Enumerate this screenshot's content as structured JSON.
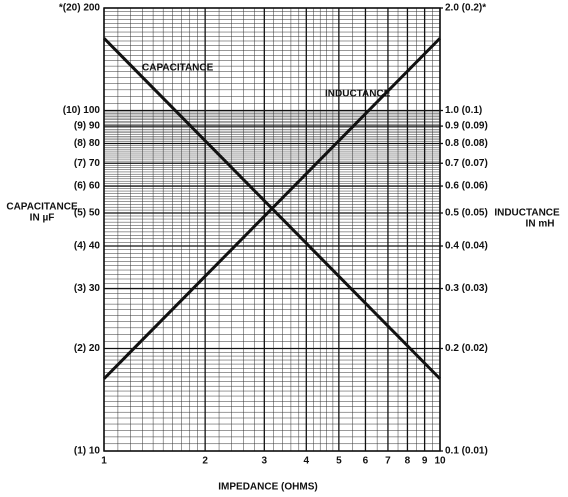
{
  "chart_data": {
    "type": "line",
    "xlabel": "IMPEDANCE (OHMS)",
    "ylabel": [
      "CAPACITANCE",
      "IN µF"
    ],
    "y2label": [
      "INDUCTANCE",
      "IN mH"
    ],
    "xscale": "log",
    "yscale": "log",
    "grid": true,
    "xlim": [
      1,
      10
    ],
    "xticks": [
      1,
      2,
      3,
      4,
      5,
      6,
      7,
      8,
      9,
      10
    ],
    "ylim": [
      10,
      200
    ],
    "yticks": [
      {
        "value": 200,
        "label": "*(20) 200"
      },
      {
        "value": 100,
        "label": "(10) 100"
      },
      {
        "value": 90,
        "label": "(9) 90"
      },
      {
        "value": 80,
        "label": "(8) 80"
      },
      {
        "value": 70,
        "label": "(7) 70"
      },
      {
        "value": 60,
        "label": "(6) 60"
      },
      {
        "value": 50,
        "label": "(5) 50"
      },
      {
        "value": 40,
        "label": "(4) 40"
      },
      {
        "value": 30,
        "label": "(3) 30"
      },
      {
        "value": 20,
        "label": "(2) 20"
      },
      {
        "value": 10,
        "label": "(1) 10"
      }
    ],
    "y2lim": [
      0.1,
      2.0
    ],
    "y2ticks": [
      {
        "value": 2.0,
        "label": "2.0 (0.2)*"
      },
      {
        "value": 1.0,
        "label": "1.0 (0.1)"
      },
      {
        "value": 0.9,
        "label": "0.9 (0.09)"
      },
      {
        "value": 0.8,
        "label": "0.8 (0.08)"
      },
      {
        "value": 0.7,
        "label": "0.7 (0.07)"
      },
      {
        "value": 0.6,
        "label": "0.6 (0.06)"
      },
      {
        "value": 0.5,
        "label": "0.5 (0.05)"
      },
      {
        "value": 0.4,
        "label": "0.4 (0.04)"
      },
      {
        "value": 0.3,
        "label": "0.3 (0.03)"
      },
      {
        "value": 0.2,
        "label": "0.2 (0.02)"
      },
      {
        "value": 0.1,
        "label": "0.1 (0.01)"
      }
    ],
    "x": [
      1,
      10
    ],
    "series": [
      {
        "name": "CAPACITANCE",
        "color": "#111111",
        "values": [
          163,
          16.3
        ]
      },
      {
        "name": "INDUCTANCE",
        "color": "#111111",
        "values": [
          0.163,
          1.63
        ],
        "axis": "y2"
      }
    ]
  }
}
